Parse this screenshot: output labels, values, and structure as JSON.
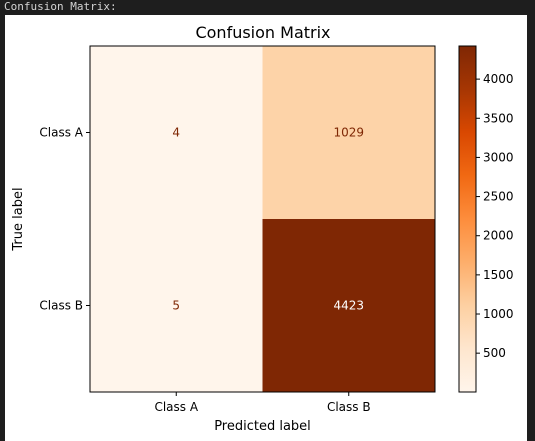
{
  "console": {
    "header": "Confusion Matrix:"
  },
  "colors": {
    "page_background": "#1e1e1e",
    "figure_background": "#ffffff",
    "colormap": "Oranges",
    "text_on_light": "#7f2704",
    "text_on_dark": "#ffffff"
  },
  "chart_data": {
    "type": "heatmap",
    "title": "Confusion Matrix",
    "xlabel": "Predicted label",
    "ylabel": "True label",
    "x_categories": [
      "Class A",
      "Class B"
    ],
    "y_categories": [
      "Class A",
      "Class B"
    ],
    "values": [
      [
        4,
        1029
      ],
      [
        5,
        4423
      ]
    ],
    "colorbar": {
      "min": 4,
      "max": 4423,
      "ticks": [
        500,
        1000,
        1500,
        2000,
        2500,
        3000,
        3500,
        4000
      ],
      "tick_labels": [
        "500",
        "1000",
        "1500",
        "2000",
        "2500",
        "3000",
        "3500",
        "4000"
      ]
    }
  }
}
